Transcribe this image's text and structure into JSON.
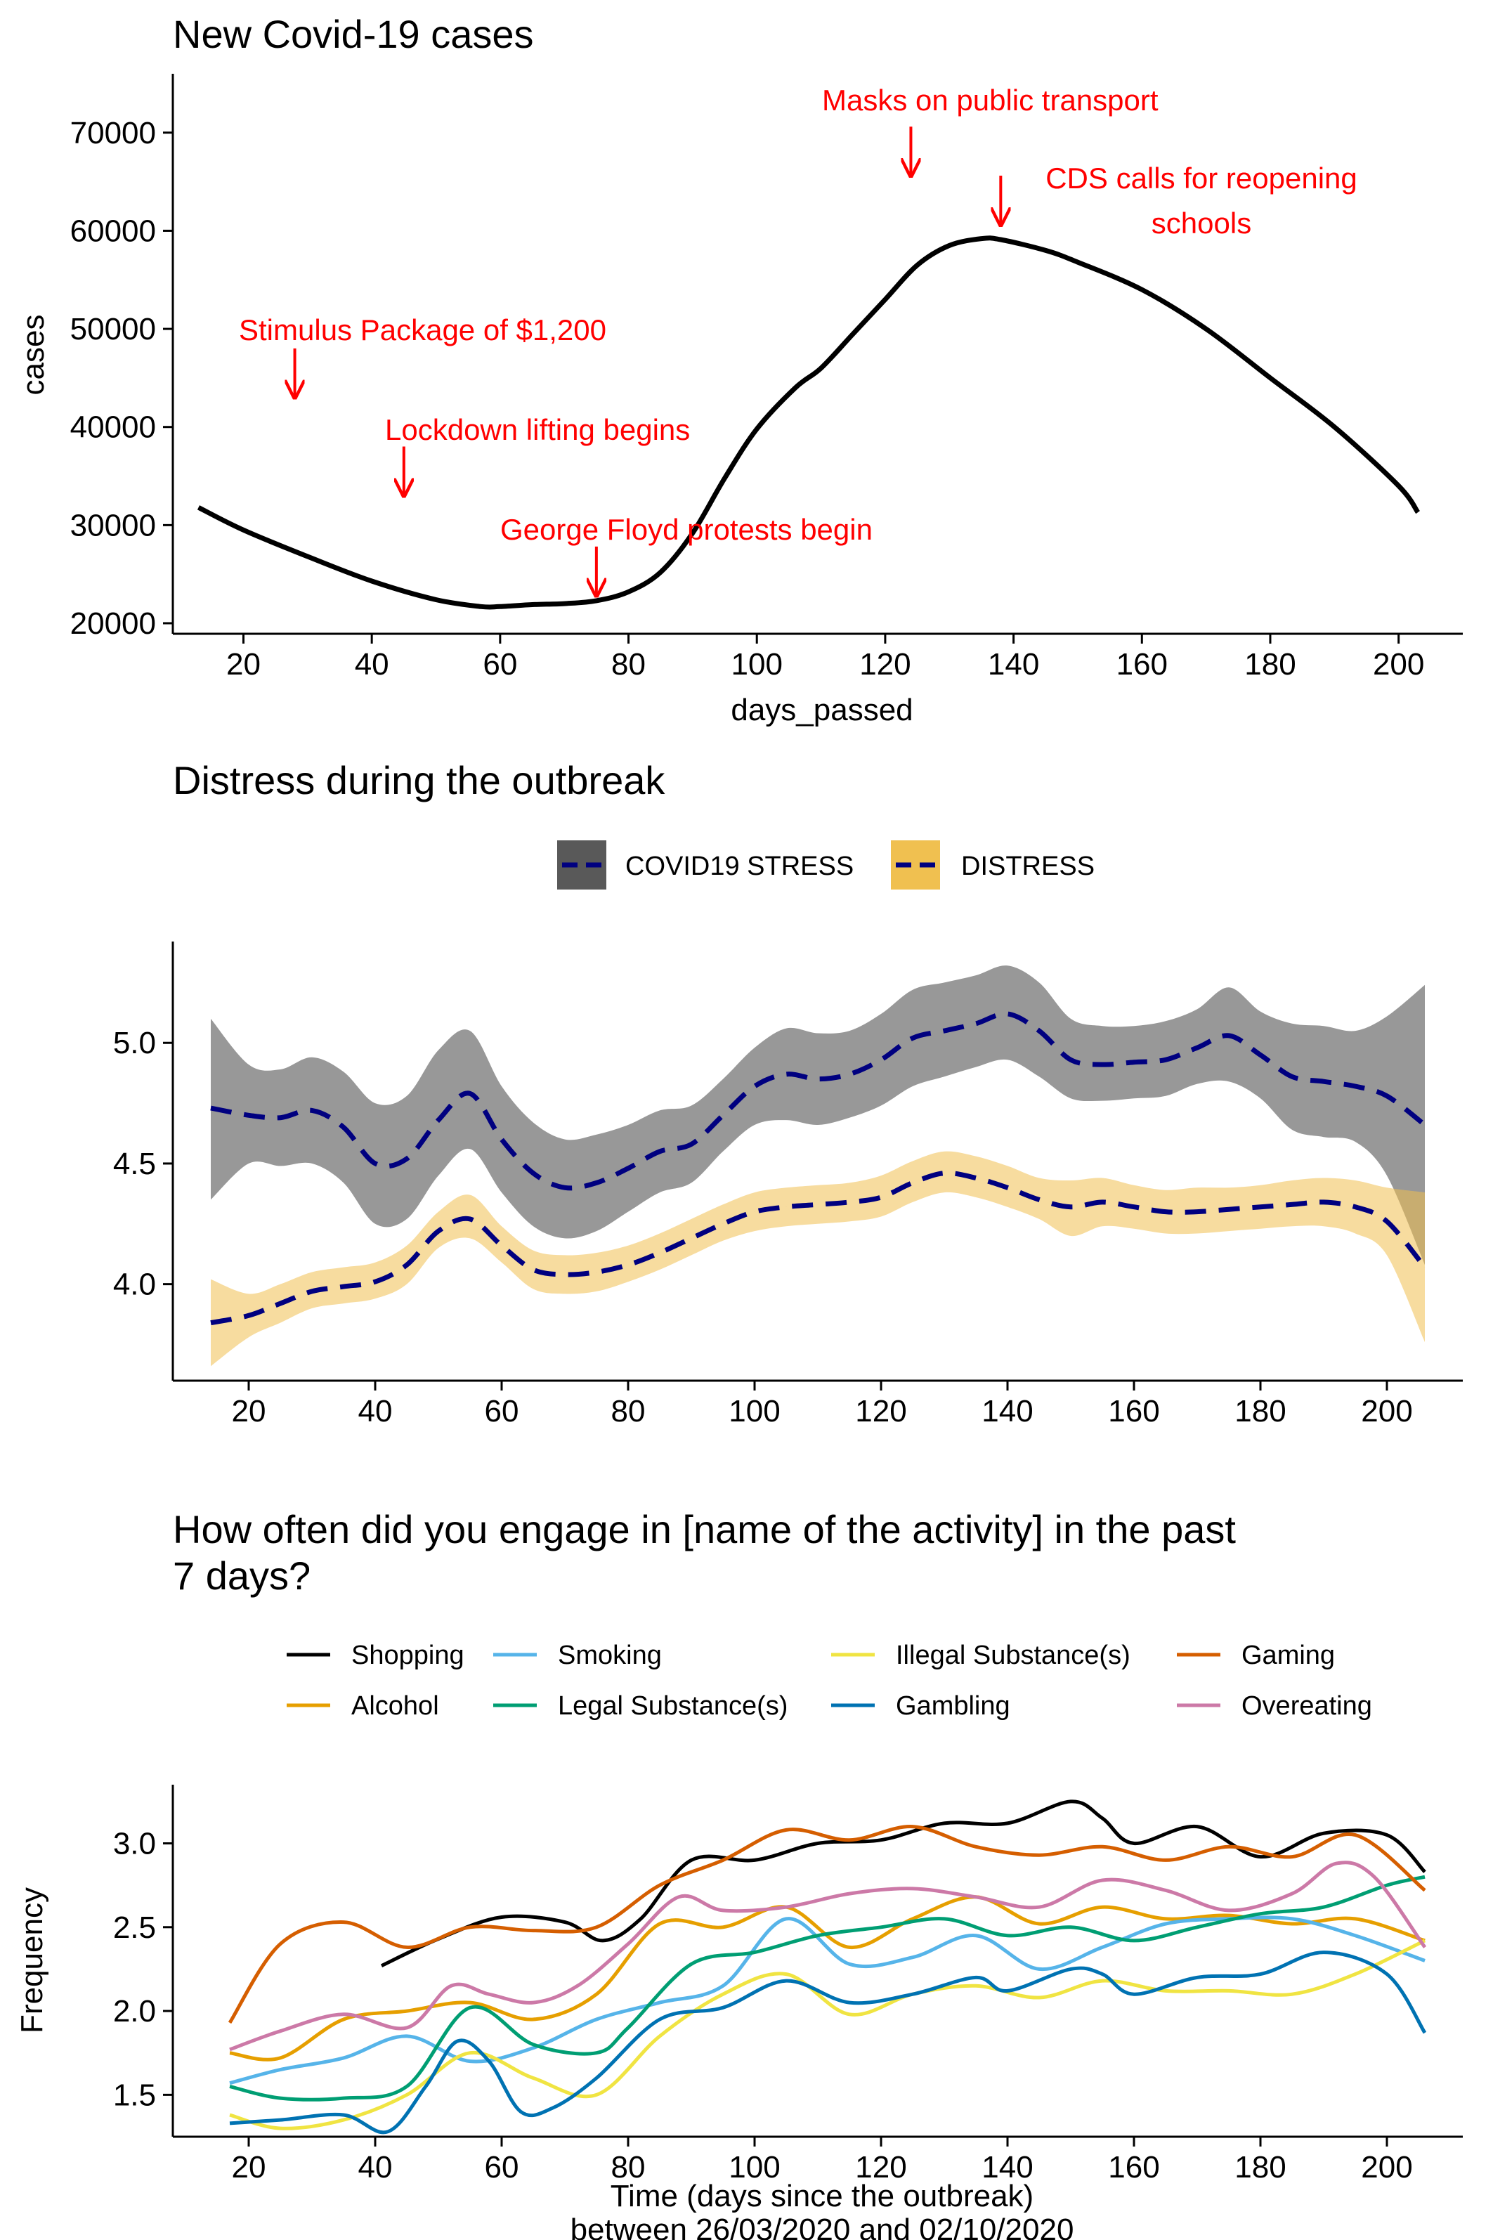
{
  "chart_data": [
    {
      "type": "line",
      "title": "New Covid-19 cases",
      "xlabel": "days_passed",
      "ylabel": "cases",
      "xlim": [
        9,
        210
      ],
      "ylim": [
        20000,
        76000
      ],
      "xticks": [
        20,
        40,
        60,
        80,
        100,
        120,
        140,
        160,
        180,
        200
      ],
      "yticks": [
        20000,
        30000,
        40000,
        50000,
        60000,
        70000
      ],
      "colors": {
        "line": "#000000",
        "annotation": "#ff0000"
      },
      "series": [
        {
          "x": [
            13,
            20,
            30,
            40,
            50,
            57,
            60,
            65,
            70,
            75,
            80,
            85,
            90,
            95,
            100,
            106,
            110,
            115,
            120,
            125,
            130,
            135,
            138,
            145,
            150,
            160,
            170,
            180,
            190,
            200,
            203
          ],
          "values": [
            31800,
            29500,
            26800,
            24300,
            22400,
            21700,
            21700,
            21900,
            22000,
            22300,
            23200,
            25200,
            29200,
            34800,
            39800,
            44000,
            46000,
            49500,
            53000,
            56500,
            58500,
            59200,
            59100,
            58000,
            56800,
            54000,
            50000,
            45000,
            40000,
            34000,
            31300
          ]
        }
      ],
      "annotations": [
        {
          "text": "Stimulus Package of $1,200",
          "x": 28,
          "y": 43000
        },
        {
          "text": "Lockdown lifting begins",
          "x": 45,
          "y": 33000
        },
        {
          "text": "George Floyd protests begin",
          "x": 75,
          "y": 22800
        },
        {
          "text": "Masks on public transport",
          "x": 124,
          "y": 65600
        },
        {
          "text": "CDS calls for reopening",
          "text2": "schools",
          "x": 138,
          "y": 60600
        }
      ],
      "grid": false
    },
    {
      "type": "line",
      "title": "Distress during the outbreak",
      "xlabel": "",
      "ylabel": "",
      "xlim": [
        8,
        212
      ],
      "ylim": [
        3.6,
        5.42
      ],
      "xticks": [
        20,
        40,
        60,
        80,
        100,
        120,
        140,
        160,
        180,
        200
      ],
      "yticks": [
        4.0,
        4.5,
        5.0
      ],
      "legend_position": "top",
      "grid": false,
      "x": [
        14,
        20,
        25,
        30,
        35,
        40,
        45,
        50,
        55,
        60,
        65,
        70,
        75,
        80,
        85,
        90,
        95,
        100,
        105,
        110,
        115,
        120,
        125,
        130,
        135,
        140,
        145,
        150,
        155,
        160,
        165,
        170,
        175,
        180,
        185,
        190,
        195,
        200,
        206
      ],
      "series": [
        {
          "name": "COVID19 STRESS",
          "color": "#000080",
          "band_color": "#595959",
          "values": [
            4.73,
            4.7,
            4.69,
            4.72,
            4.65,
            4.5,
            4.52,
            4.68,
            4.79,
            4.6,
            4.46,
            4.4,
            4.42,
            4.48,
            4.55,
            4.58,
            4.7,
            4.82,
            4.87,
            4.85,
            4.87,
            4.93,
            5.02,
            5.05,
            5.08,
            5.12,
            5.05,
            4.93,
            4.91,
            4.92,
            4.93,
            4.98,
            5.03,
            4.95,
            4.86,
            4.84,
            4.82,
            4.78,
            4.66
          ],
          "lower": [
            4.35,
            4.5,
            4.49,
            4.5,
            4.42,
            4.25,
            4.27,
            4.45,
            4.56,
            4.38,
            4.24,
            4.19,
            4.22,
            4.3,
            4.38,
            4.42,
            4.55,
            4.66,
            4.68,
            4.66,
            4.69,
            4.74,
            4.82,
            4.86,
            4.9,
            4.93,
            4.86,
            4.77,
            4.76,
            4.77,
            4.78,
            4.83,
            4.84,
            4.77,
            4.64,
            4.61,
            4.59,
            4.45,
            4.08
          ],
          "upper": [
            5.1,
            4.91,
            4.89,
            4.94,
            4.88,
            4.75,
            4.78,
            4.97,
            5.05,
            4.82,
            4.67,
            4.6,
            4.62,
            4.66,
            4.72,
            4.74,
            4.85,
            4.98,
            5.06,
            5.04,
            5.05,
            5.12,
            5.22,
            5.25,
            5.28,
            5.32,
            5.25,
            5.1,
            5.07,
            5.07,
            5.09,
            5.14,
            5.23,
            5.13,
            5.08,
            5.07,
            5.05,
            5.11,
            5.24
          ]
        },
        {
          "name": "DISTRESS",
          "color": "#000080",
          "band_color": "#f0c050",
          "values": [
            3.84,
            3.87,
            3.92,
            3.97,
            3.99,
            4.01,
            4.08,
            4.22,
            4.27,
            4.16,
            4.06,
            4.04,
            4.05,
            4.08,
            4.13,
            4.19,
            4.25,
            4.3,
            4.32,
            4.33,
            4.34,
            4.36,
            4.42,
            4.46,
            4.44,
            4.4,
            4.35,
            4.32,
            4.34,
            4.32,
            4.3,
            4.3,
            4.31,
            4.32,
            4.33,
            4.34,
            4.32,
            4.26,
            4.07
          ],
          "lower": [
            3.66,
            3.78,
            3.84,
            3.9,
            3.92,
            3.94,
            4.0,
            4.15,
            4.19,
            4.09,
            3.98,
            3.96,
            3.97,
            4.01,
            4.06,
            4.12,
            4.18,
            4.22,
            4.24,
            4.25,
            4.26,
            4.28,
            4.34,
            4.38,
            4.36,
            4.32,
            4.27,
            4.2,
            4.24,
            4.23,
            4.21,
            4.21,
            4.22,
            4.23,
            4.24,
            4.24,
            4.21,
            4.12,
            3.76
          ],
          "upper": [
            4.02,
            3.96,
            4.0,
            4.05,
            4.07,
            4.09,
            4.16,
            4.3,
            4.37,
            4.24,
            4.14,
            4.12,
            4.13,
            4.16,
            4.21,
            4.27,
            4.33,
            4.38,
            4.4,
            4.41,
            4.42,
            4.45,
            4.51,
            4.55,
            4.53,
            4.49,
            4.44,
            4.43,
            4.44,
            4.41,
            4.39,
            4.4,
            4.4,
            4.41,
            4.43,
            4.44,
            4.43,
            4.4,
            4.38
          ]
        }
      ]
    },
    {
      "type": "line",
      "title": "How often did you engage in [name of the activity] in the past",
      "title_line2": "7 days?",
      "xlabel": "Time (days since the outbreak)",
      "xlabel_line2": "between 26/03/2020 and 02/10/2020",
      "ylabel": "Frequency",
      "xlim": [
        8,
        212
      ],
      "ylim": [
        1.25,
        3.35
      ],
      "xticks": [
        20,
        40,
        60,
        80,
        100,
        120,
        140,
        160,
        180,
        200
      ],
      "yticks": [
        1.5,
        2.0,
        2.5,
        3.0
      ],
      "legend_position": "top",
      "grid": false,
      "series": [
        {
          "name": "Shopping",
          "color": "#000000",
          "x": [
            41,
            50,
            60,
            70,
            76,
            82,
            90,
            100,
            110,
            120,
            130,
            140,
            150,
            155,
            160,
            170,
            180,
            190,
            200,
            206
          ],
          "values": [
            2.27,
            2.43,
            2.56,
            2.53,
            2.42,
            2.55,
            2.9,
            2.9,
            3.0,
            3.02,
            3.12,
            3.12,
            3.25,
            3.15,
            3.0,
            3.1,
            2.92,
            3.06,
            3.05,
            2.83
          ]
        },
        {
          "name": "Alcohol",
          "color": "#e69f00",
          "x": [
            17,
            25,
            35,
            45,
            55,
            65,
            75,
            85,
            95,
            105,
            115,
            125,
            135,
            145,
            155,
            165,
            175,
            185,
            195,
            206
          ],
          "values": [
            1.75,
            1.72,
            1.95,
            2.0,
            2.05,
            1.95,
            2.1,
            2.52,
            2.5,
            2.62,
            2.38,
            2.55,
            2.68,
            2.52,
            2.62,
            2.55,
            2.57,
            2.52,
            2.55,
            2.42
          ]
        },
        {
          "name": "Smoking",
          "color": "#56b4e9",
          "x": [
            17,
            25,
            35,
            45,
            55,
            65,
            75,
            85,
            95,
            105,
            115,
            125,
            135,
            145,
            155,
            165,
            175,
            185,
            195,
            206
          ],
          "values": [
            1.57,
            1.65,
            1.72,
            1.85,
            1.7,
            1.78,
            1.95,
            2.05,
            2.15,
            2.55,
            2.28,
            2.32,
            2.45,
            2.25,
            2.38,
            2.52,
            2.55,
            2.55,
            2.45,
            2.3
          ]
        },
        {
          "name": "Legal Substance(s)",
          "color": "#009e73",
          "x": [
            17,
            25,
            35,
            45,
            55,
            65,
            75,
            80,
            90,
            100,
            110,
            120,
            130,
            140,
            150,
            160,
            170,
            180,
            190,
            200,
            206
          ],
          "values": [
            1.55,
            1.48,
            1.48,
            1.55,
            2.02,
            1.8,
            1.75,
            1.9,
            2.28,
            2.35,
            2.45,
            2.5,
            2.55,
            2.45,
            2.5,
            2.42,
            2.5,
            2.58,
            2.62,
            2.75,
            2.8
          ]
        },
        {
          "name": "Illegal Substance(s)",
          "color": "#f0e442",
          "x": [
            17,
            25,
            35,
            45,
            55,
            65,
            75,
            85,
            95,
            105,
            115,
            125,
            135,
            145,
            155,
            165,
            175,
            185,
            195,
            206
          ],
          "values": [
            1.38,
            1.3,
            1.35,
            1.5,
            1.75,
            1.6,
            1.5,
            1.85,
            2.1,
            2.22,
            1.98,
            2.1,
            2.15,
            2.08,
            2.18,
            2.12,
            2.12,
            2.1,
            2.22,
            2.42
          ]
        },
        {
          "name": "Gambling",
          "color": "#0072b2",
          "x": [
            17,
            25,
            35,
            42,
            48,
            53,
            58,
            63,
            68,
            75,
            85,
            95,
            105,
            115,
            125,
            135,
            140,
            150,
            155,
            160,
            170,
            180,
            190,
            200,
            206
          ],
          "values": [
            1.33,
            1.35,
            1.38,
            1.28,
            1.55,
            1.82,
            1.7,
            1.4,
            1.42,
            1.6,
            1.95,
            2.02,
            2.18,
            2.05,
            2.1,
            2.2,
            2.12,
            2.25,
            2.22,
            2.1,
            2.2,
            2.22,
            2.35,
            2.22,
            1.87
          ]
        },
        {
          "name": "Gaming",
          "color": "#d55e00",
          "x": [
            17,
            25,
            35,
            45,
            55,
            65,
            75,
            85,
            95,
            105,
            115,
            125,
            135,
            145,
            155,
            165,
            175,
            185,
            195,
            206
          ],
          "values": [
            1.93,
            2.4,
            2.53,
            2.38,
            2.5,
            2.48,
            2.5,
            2.75,
            2.9,
            3.08,
            3.02,
            3.1,
            2.98,
            2.93,
            2.98,
            2.9,
            2.98,
            2.92,
            3.05,
            2.72
          ]
        },
        {
          "name": "Overeating",
          "color": "#cc79a7",
          "x": [
            17,
            25,
            35,
            45,
            52,
            58,
            65,
            72,
            80,
            88,
            95,
            105,
            115,
            125,
            135,
            145,
            155,
            165,
            175,
            185,
            192,
            198,
            206
          ],
          "values": [
            1.77,
            1.88,
            1.98,
            1.9,
            2.15,
            2.1,
            2.05,
            2.15,
            2.4,
            2.68,
            2.6,
            2.62,
            2.7,
            2.73,
            2.68,
            2.62,
            2.78,
            2.72,
            2.6,
            2.7,
            2.88,
            2.8,
            2.38
          ]
        }
      ]
    }
  ]
}
